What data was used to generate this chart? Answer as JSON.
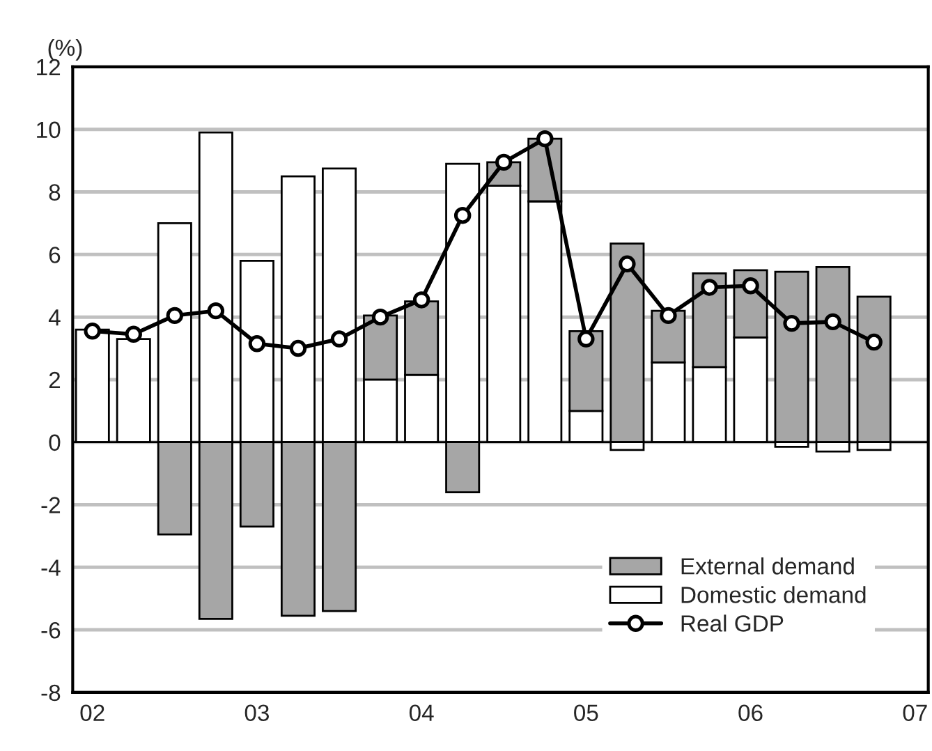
{
  "chart_data": {
    "type": "bar",
    "ylabel": "(%)",
    "stacked": true,
    "x": [
      2002.0,
      2002.25,
      2002.5,
      2002.75,
      2003.0,
      2003.25,
      2003.5,
      2003.75,
      2004.0,
      2004.25,
      2004.5,
      2004.75,
      2005.0,
      2005.25,
      2005.5,
      2005.75,
      2006.0,
      2006.25,
      2006.5,
      2006.75
    ],
    "series": [
      {
        "name": "Domestic demand",
        "color": "#ffffff",
        "values": [
          3.6,
          3.3,
          7.0,
          9.9,
          5.8,
          8.5,
          8.75,
          2.0,
          2.15,
          8.9,
          8.2,
          7.7,
          1.0,
          -0.25,
          2.55,
          2.4,
          3.35,
          -0.15,
          -0.3,
          -0.25
        ]
      },
      {
        "name": "External demand",
        "color": "#a6a6a6",
        "values": [
          null,
          null,
          -2.95,
          -5.65,
          -2.7,
          -5.55,
          -5.4,
          2.05,
          2.35,
          -1.6,
          0.75,
          2.0,
          2.55,
          6.35,
          1.65,
          3.0,
          2.15,
          5.45,
          5.6,
          4.65
        ]
      },
      {
        "name": "Real GDP",
        "type": "line",
        "color": "#000000",
        "marker": "circle",
        "values": [
          3.55,
          3.45,
          4.05,
          4.2,
          3.15,
          3.0,
          3.3,
          4.0,
          4.55,
          7.25,
          8.95,
          9.7,
          3.3,
          5.7,
          4.05,
          4.95,
          5.0,
          3.8,
          3.85,
          3.2
        ]
      }
    ],
    "xlim": [
      2001.88,
      2007.08
    ],
    "xticks": [
      {
        "value": 2002,
        "label": "02"
      },
      {
        "value": 2003,
        "label": "03"
      },
      {
        "value": 2004,
        "label": "04"
      },
      {
        "value": 2005,
        "label": "05"
      },
      {
        "value": 2006,
        "label": "06"
      },
      {
        "value": 2007,
        "label": "07"
      }
    ],
    "ylim": [
      -8,
      12
    ],
    "yticks": [
      -8,
      -6,
      -4,
      -2,
      0,
      2,
      4,
      6,
      8,
      10,
      12
    ],
    "grid": "y",
    "legend": "bottom right"
  }
}
